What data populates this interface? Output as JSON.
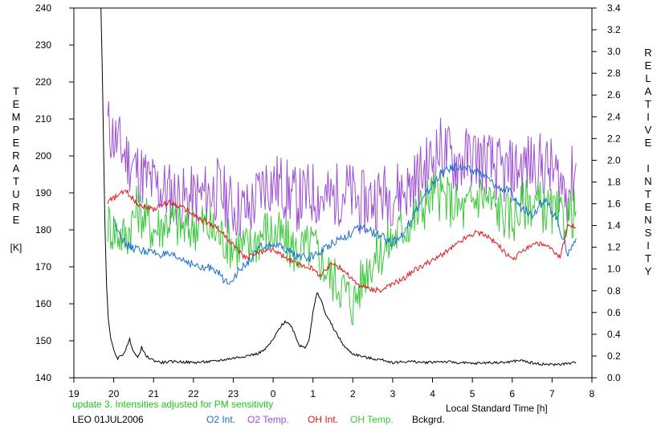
{
  "chart_data": {
    "type": "line",
    "left_axis": {
      "label": "TEMPERATURE",
      "unit": "[K]",
      "ticks": [
        "240",
        "230",
        "220",
        "210",
        "200",
        "190",
        "180",
        "170",
        "160",
        "150",
        "140"
      ],
      "ylim": [
        140,
        240
      ]
    },
    "right_axis": {
      "label_top": "RELATIVE",
      "label_bottom": "INTENSITY",
      "ticks": [
        "3.4",
        "3.2",
        "3.0",
        "2.8",
        "2.6",
        "2.4",
        "2.2",
        "2.0",
        "1.8",
        "1.6",
        "1.4",
        "1.2",
        "1.0",
        "0.8",
        "0.6",
        "0.4",
        "0.2",
        "0.0"
      ],
      "ylim": [
        0,
        3.4
      ]
    },
    "x_axis": {
      "label": "Local Standard Time [h]",
      "ticks": [
        "19",
        "20",
        "21",
        "22",
        "23",
        "0",
        "1",
        "2",
        "3",
        "4",
        "5",
        "6",
        "7",
        "8"
      ],
      "xlim": [
        19,
        32
      ]
    },
    "annotation": "update 3. Intensities adjusted for PM sensitivity",
    "annotation_color": "#22c21e",
    "station": "LEO 01JUL2006",
    "grid": false,
    "series": [
      {
        "name": "O2 Int.",
        "color": "#1a6fd0",
        "axis": "right",
        "x": [
          20.0,
          20.3,
          20.6,
          21.0,
          21.4,
          21.8,
          22.2,
          22.5,
          22.8,
          23.0,
          23.3,
          23.7,
          24.0,
          24.3,
          24.6,
          24.9,
          25.2,
          25.5,
          25.8,
          26.2,
          26.6,
          27.0,
          27.3,
          27.6,
          27.9,
          28.2,
          28.6,
          29.0,
          29.3,
          29.6,
          29.9,
          30.2,
          30.5,
          30.8,
          31.1,
          31.4,
          31.6
        ],
        "y": [
          1.45,
          1.22,
          1.18,
          1.15,
          1.12,
          1.08,
          1.0,
          1.02,
          0.88,
          0.92,
          1.04,
          1.2,
          1.22,
          1.18,
          1.12,
          1.1,
          1.16,
          1.25,
          1.3,
          1.38,
          1.32,
          1.24,
          1.34,
          1.55,
          1.72,
          1.88,
          1.95,
          1.9,
          1.86,
          1.76,
          1.72,
          1.58,
          1.5,
          1.64,
          1.48,
          1.14,
          1.28
        ]
      },
      {
        "name": "O2 Temp.",
        "color": "#9c4fd6",
        "axis": "left",
        "x": [
          19.85,
          20.0,
          20.3,
          20.6,
          21.0,
          21.4,
          21.8,
          22.2,
          22.6,
          23.0,
          23.4,
          23.8,
          24.2,
          24.6,
          25.0,
          25.4,
          25.8,
          26.2,
          26.6,
          27.0,
          27.4,
          27.8,
          28.2,
          28.6,
          29.0,
          29.4,
          29.8,
          30.2,
          30.6,
          31.0,
          31.4,
          31.6
        ],
        "y": [
          208,
          205,
          200,
          196,
          192,
          190,
          188,
          189,
          191,
          186,
          185,
          193,
          192,
          188,
          190,
          188,
          191,
          187,
          189,
          190,
          191,
          196,
          202,
          198,
          200,
          198,
          195,
          197,
          198,
          196,
          190,
          198
        ]
      },
      {
        "name": "OH Int.",
        "color": "#e01818",
        "axis": "right",
        "x": [
          19.85,
          20.0,
          20.3,
          20.6,
          21.0,
          21.4,
          21.8,
          22.2,
          22.6,
          22.8,
          23.0,
          23.3,
          23.6,
          24.0,
          24.3,
          24.6,
          24.9,
          25.2,
          25.5,
          25.8,
          26.1,
          26.4,
          26.7,
          27.0,
          27.3,
          27.6,
          27.9,
          28.2,
          28.5,
          28.8,
          29.1,
          29.4,
          29.7,
          30.0,
          30.3,
          30.6,
          30.9,
          31.2,
          31.4,
          31.6
        ],
        "y": [
          1.62,
          1.65,
          1.72,
          1.6,
          1.55,
          1.62,
          1.55,
          1.45,
          1.38,
          1.3,
          1.22,
          1.1,
          1.15,
          1.18,
          1.1,
          1.05,
          1.02,
          0.94,
          1.06,
          0.98,
          0.86,
          0.82,
          0.8,
          0.86,
          0.92,
          1.0,
          1.06,
          1.12,
          1.2,
          1.28,
          1.34,
          1.3,
          1.2,
          1.08,
          1.18,
          1.24,
          1.2,
          1.1,
          1.42,
          1.38
        ]
      },
      {
        "name": "OH Temp.",
        "color": "#3cc93c",
        "axis": "left",
        "x": [
          19.85,
          20.0,
          20.3,
          20.6,
          21.0,
          21.4,
          21.8,
          22.2,
          22.6,
          23.0,
          23.4,
          23.8,
          24.2,
          24.6,
          25.0,
          25.4,
          25.8,
          26.0,
          26.4,
          26.8,
          27.2,
          27.6,
          28.0,
          28.4,
          28.8,
          29.2,
          29.6,
          30.0,
          30.4,
          30.8,
          31.2,
          31.6
        ],
        "y": [
          182,
          180,
          178,
          186,
          180,
          183,
          180,
          182,
          179,
          176,
          175,
          180,
          178,
          174,
          176,
          168,
          164,
          160,
          171,
          175,
          180,
          184,
          190,
          188,
          185,
          190,
          186,
          183,
          188,
          186,
          183,
          185
        ]
      },
      {
        "name": "Bckgrd.",
        "color": "#000000",
        "axis": "right",
        "x": [
          19.68,
          19.72,
          19.75,
          19.78,
          19.82,
          19.86,
          19.9,
          19.95,
          20.0,
          20.1,
          20.2,
          20.3,
          20.4,
          20.5,
          20.6,
          20.7,
          20.8,
          21.0,
          21.2,
          21.5,
          22.0,
          22.5,
          23.0,
          23.3,
          23.6,
          23.8,
          24.0,
          24.15,
          24.3,
          24.45,
          24.55,
          24.65,
          24.8,
          24.9,
          25.0,
          25.1,
          25.2,
          25.3,
          25.45,
          25.6,
          25.8,
          26.0,
          26.4,
          26.8,
          27.0,
          27.4,
          27.8,
          28.2,
          28.6,
          29.0,
          29.4,
          29.8,
          30.2,
          30.6,
          31.0,
          31.4,
          31.6
        ],
        "y": [
          3.4,
          2.7,
          2.0,
          1.4,
          0.85,
          0.55,
          0.42,
          0.32,
          0.25,
          0.18,
          0.2,
          0.26,
          0.35,
          0.24,
          0.18,
          0.28,
          0.2,
          0.16,
          0.14,
          0.15,
          0.14,
          0.15,
          0.18,
          0.2,
          0.22,
          0.26,
          0.35,
          0.45,
          0.52,
          0.48,
          0.4,
          0.3,
          0.28,
          0.35,
          0.6,
          0.78,
          0.72,
          0.6,
          0.5,
          0.4,
          0.28,
          0.22,
          0.18,
          0.16,
          0.14,
          0.15,
          0.14,
          0.15,
          0.14,
          0.13,
          0.14,
          0.14,
          0.16,
          0.13,
          0.12,
          0.13,
          0.14
        ]
      }
    ]
  }
}
